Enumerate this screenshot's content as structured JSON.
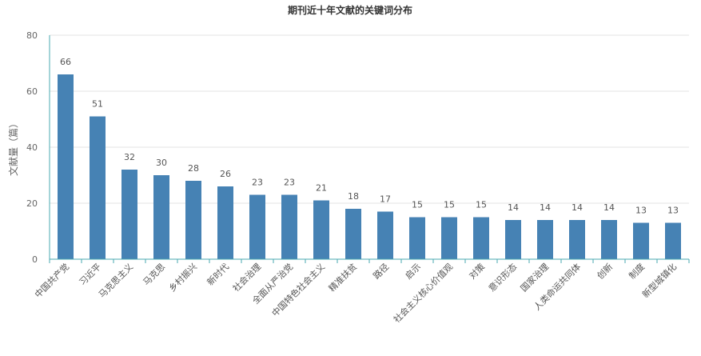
{
  "chart_data": {
    "type": "bar",
    "title": "期刊近十年文献的关键词分布",
    "xlabel": "",
    "ylabel": "文献量（篇）",
    "ylim": [
      0,
      80
    ],
    "yticks": [
      0,
      20,
      40,
      60,
      80
    ],
    "grid": true,
    "bar_color": "#4682b4",
    "axis_color": "#48a8b0",
    "categories": [
      "中国共产党",
      "习近平",
      "马克思主义",
      "马克思",
      "乡村振兴",
      "新时代",
      "社会治理",
      "全面从严治党",
      "中国特色社会主义",
      "精准扶贫",
      "路径",
      "启示",
      "社会主义核心价值观",
      "对策",
      "意识形态",
      "国家治理",
      "人类命运共同体",
      "创新",
      "制度",
      "新型城镇化"
    ],
    "values": [
      66,
      51,
      32,
      30,
      28,
      26,
      23,
      23,
      21,
      18,
      17,
      15,
      15,
      15,
      14,
      14,
      14,
      14,
      13,
      13
    ]
  }
}
